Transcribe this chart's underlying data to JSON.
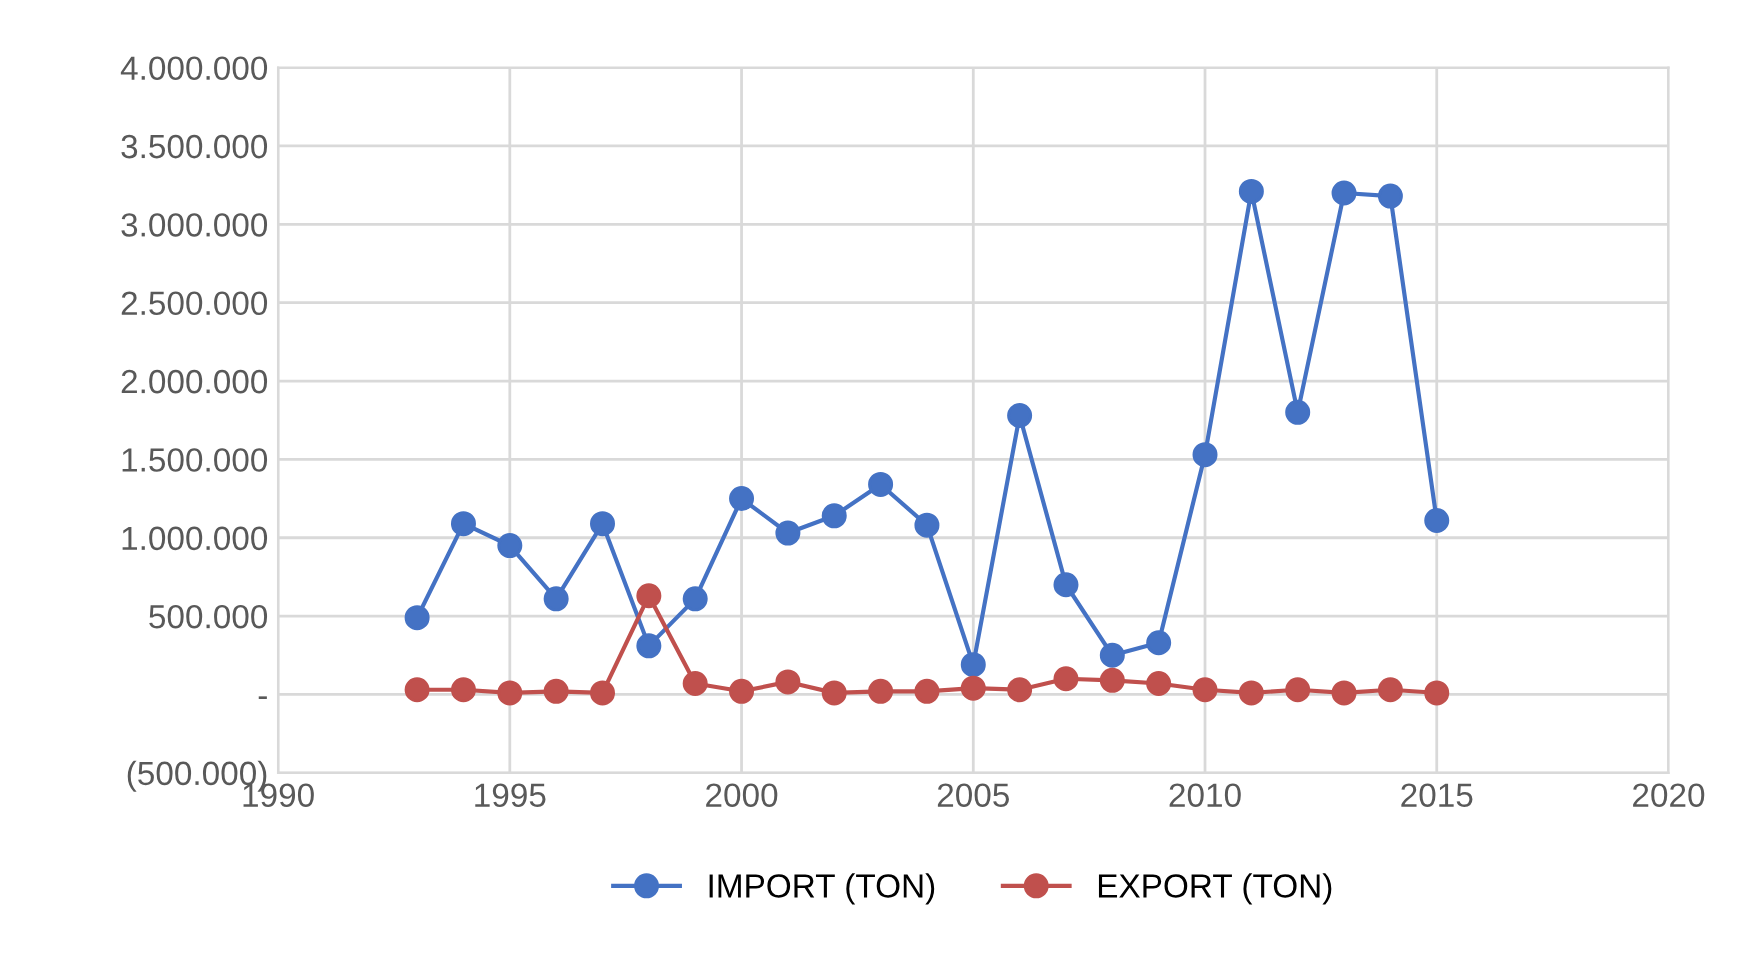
{
  "chart_data": {
    "type": "line",
    "x": [
      1993,
      1994,
      1995,
      1996,
      1997,
      1998,
      1999,
      2000,
      2001,
      2002,
      2003,
      2004,
      2005,
      2006,
      2007,
      2008,
      2009,
      2010,
      2011,
      2012,
      2013,
      2014,
      2015
    ],
    "series": [
      {
        "name": "IMPORT (TON)",
        "color": "#4472c4",
        "values": [
          490000,
          1090000,
          950000,
          610000,
          1090000,
          310000,
          610000,
          1250000,
          1030000,
          1140000,
          1340000,
          1080000,
          190000,
          1780000,
          700000,
          250000,
          330000,
          1530000,
          3210000,
          1800000,
          3200000,
          3180000,
          1110000
        ]
      },
      {
        "name": "EXPORT (TON)",
        "color": "#c0504d",
        "values": [
          30000,
          30000,
          10000,
          20000,
          10000,
          630000,
          70000,
          20000,
          80000,
          10000,
          20000,
          20000,
          40000,
          30000,
          100000,
          90000,
          70000,
          30000,
          10000,
          30000,
          10000,
          30000,
          10000
        ]
      }
    ],
    "xlim": [
      1990,
      2020
    ],
    "xticks": [
      1990,
      1995,
      2000,
      2005,
      2010,
      2015,
      2020
    ],
    "ylim": [
      -500000,
      4000000
    ],
    "yticks": [
      {
        "value": -500000,
        "label": "(500.000)"
      },
      {
        "value": 0,
        "label": "-"
      },
      {
        "value": 500000,
        "label": "500.000"
      },
      {
        "value": 1000000,
        "label": "1.000.000"
      },
      {
        "value": 1500000,
        "label": "1.500.000"
      },
      {
        "value": 2000000,
        "label": "2.000.000"
      },
      {
        "value": 2500000,
        "label": "2.500.000"
      },
      {
        "value": 3000000,
        "label": "3.000.000"
      },
      {
        "value": 3500000,
        "label": "3.500.000"
      },
      {
        "value": 4000000,
        "label": "4.000.000"
      }
    ],
    "grid": true,
    "legend": "bottom",
    "marker": "circle",
    "line_style": "solid"
  }
}
